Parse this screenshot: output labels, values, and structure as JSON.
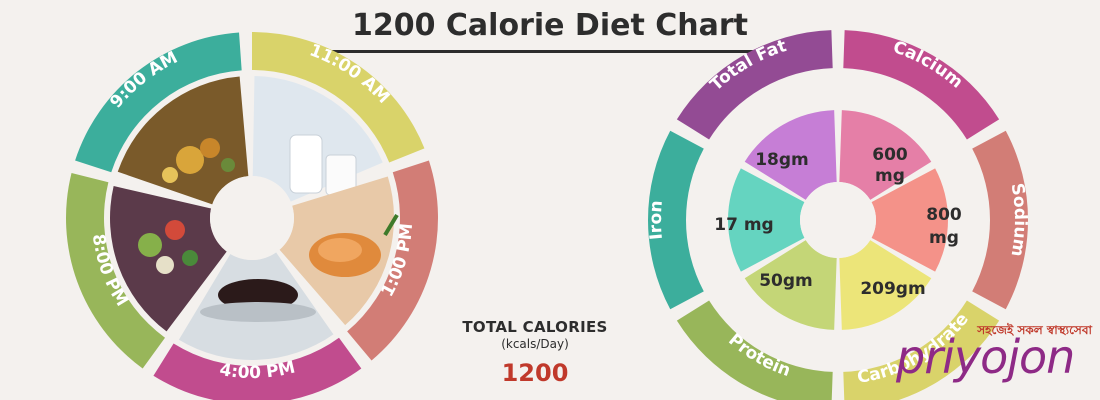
{
  "title": "1200 Calorie Diet Chart",
  "schedule": {
    "times": [
      "9:00 AM",
      "11:00 AM",
      "1:00 PM",
      "4:00 PM",
      "8:00 PM"
    ],
    "foods": [
      "rice-dish",
      "milk",
      "fish-curry",
      "tea",
      "salad"
    ]
  },
  "totals": {
    "label": "TOTAL CALORIES",
    "unit": "(kcals/Day)",
    "value": "1200"
  },
  "nutrients": {
    "outer_labels": [
      "Total Fat",
      "Calcium",
      "Sodium",
      "Carbohydrate",
      "Protein",
      "Iron"
    ],
    "values": [
      "18gm",
      "600 mg",
      "800 mg",
      "209gm",
      "50gm",
      "17 mg"
    ]
  },
  "logo": {
    "tagline": "সহজেই সকল স্বাস্থ্যসেবা",
    "wordmark": "priyojon"
  },
  "colors": {
    "teal": "#3cae9c",
    "yellow": "#d9d36a",
    "salmon": "#d27d76",
    "magenta": "#c14c8e",
    "green": "#98b65a",
    "purple": "#934b94",
    "pink": "#e57fa7",
    "coral": "#f49289",
    "cream": "#ece579",
    "lightgreen": "#c4d677",
    "mint": "#65d4c0",
    "violet": "#c67ed6"
  }
}
